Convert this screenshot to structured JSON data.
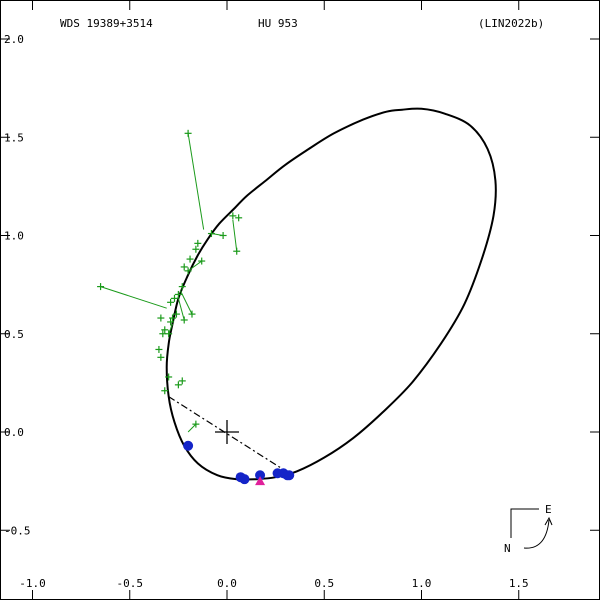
{
  "header": {
    "wds_id": "WDS 19389+3514",
    "discoverer": "HU  953",
    "reference": "(LIN2022b)"
  },
  "compass": {
    "east_label": "E",
    "north_label": "N"
  },
  "chart_data": {
    "type": "scatter",
    "title": "",
    "xlabel": "",
    "ylabel": "",
    "xlim": [
      -1.0,
      1.9
    ],
    "ylim": [
      -0.75,
      2.05
    ],
    "y_reversed": true,
    "grid": false,
    "x_ticks": [
      -1.0,
      -0.5,
      0.0,
      0.5,
      1.0,
      1.5
    ],
    "x_tick_labels": [
      "-1.0",
      "-0.5",
      "0.0",
      "0.5",
      "1.0",
      "1.5"
    ],
    "y_ticks": [
      2.0,
      1.5,
      1.0,
      0.5,
      0.0,
      -0.5
    ],
    "y_tick_labels": [
      "2.0",
      "1.5",
      "1.0",
      "0.5",
      "0.0",
      "-0.5"
    ],
    "primary_star": [
      0.0,
      0.0
    ],
    "orbit": [
      [
        0.9,
        1.64
      ],
      [
        0.82,
        1.63
      ],
      [
        0.7,
        1.59
      ],
      [
        0.55,
        1.52
      ],
      [
        0.42,
        1.44
      ],
      [
        0.3,
        1.36
      ],
      [
        0.2,
        1.28
      ],
      [
        0.1,
        1.2
      ],
      [
        0.04,
        1.14
      ],
      [
        -0.04,
        1.06
      ],
      [
        -0.1,
        0.98
      ],
      [
        -0.15,
        0.9
      ],
      [
        -0.2,
        0.8
      ],
      [
        -0.25,
        0.68
      ],
      [
        -0.28,
        0.55
      ],
      [
        -0.3,
        0.45
      ],
      [
        -0.31,
        0.33
      ],
      [
        -0.3,
        0.18
      ],
      [
        -0.27,
        0.05
      ],
      [
        -0.22,
        -0.07
      ],
      [
        -0.15,
        -0.16
      ],
      [
        -0.05,
        -0.22
      ],
      [
        0.05,
        -0.24
      ],
      [
        0.15,
        -0.24
      ],
      [
        0.25,
        -0.23
      ],
      [
        0.36,
        -0.2
      ],
      [
        0.5,
        -0.13
      ],
      [
        0.65,
        -0.03
      ],
      [
        0.8,
        0.1
      ],
      [
        0.95,
        0.25
      ],
      [
        1.1,
        0.45
      ],
      [
        1.22,
        0.65
      ],
      [
        1.31,
        0.88
      ],
      [
        1.37,
        1.1
      ],
      [
        1.38,
        1.28
      ],
      [
        1.34,
        1.44
      ],
      [
        1.25,
        1.56
      ],
      [
        1.12,
        1.62
      ],
      [
        1.0,
        1.645
      ],
      [
        0.9,
        1.64
      ]
    ],
    "line_of_nodes": [
      [
        -0.3,
        0.18
      ],
      [
        0.32,
        -0.21
      ]
    ],
    "periastron": [
      0.17,
      -0.25
    ],
    "green_points": [
      [
        -0.2,
        1.52
      ],
      [
        -0.08,
        1.01
      ],
      [
        -0.02,
        1.0
      ],
      [
        0.03,
        1.1
      ],
      [
        0.06,
        1.09
      ],
      [
        0.05,
        0.92
      ],
      [
        -0.13,
        0.87
      ],
      [
        -0.15,
        0.96
      ],
      [
        -0.16,
        0.93
      ],
      [
        -0.19,
        0.88
      ],
      [
        -0.2,
        0.82
      ],
      [
        -0.22,
        0.84
      ],
      [
        -0.23,
        0.74
      ],
      [
        -0.25,
        0.7
      ],
      [
        -0.27,
        0.68
      ],
      [
        -0.29,
        0.66
      ],
      [
        -0.26,
        0.6
      ],
      [
        -0.28,
        0.58
      ],
      [
        -0.29,
        0.56
      ],
      [
        -0.32,
        0.52
      ],
      [
        -0.34,
        0.58
      ],
      [
        -0.33,
        0.5
      ],
      [
        -0.35,
        0.42
      ],
      [
        -0.34,
        0.38
      ],
      [
        -0.3,
        0.28
      ],
      [
        -0.25,
        0.24
      ],
      [
        -0.23,
        0.26
      ],
      [
        -0.32,
        0.21
      ],
      [
        -0.65,
        0.74
      ],
      [
        -0.16,
        0.04
      ],
      [
        -0.22,
        0.57
      ],
      [
        -0.18,
        0.6
      ],
      [
        -0.3,
        0.5
      ]
    ],
    "green_residual_lines": [
      [
        [
          -0.2,
          1.52
        ],
        [
          -0.12,
          1.03
        ]
      ],
      [
        [
          0.05,
          0.92
        ],
        [
          0.03,
          1.08
        ]
      ],
      [
        [
          -0.65,
          0.74
        ],
        [
          -0.31,
          0.63
        ]
      ],
      [
        [
          -0.16,
          0.04
        ],
        [
          -0.2,
          0.0
        ]
      ],
      [
        [
          -0.22,
          0.57
        ],
        [
          -0.25,
          0.68
        ]
      ],
      [
        [
          -0.18,
          0.6
        ],
        [
          -0.24,
          0.72
        ]
      ],
      [
        [
          -0.3,
          0.5
        ],
        [
          -0.28,
          0.55
        ]
      ],
      [
        [
          -0.13,
          0.87
        ],
        [
          -0.2,
          0.82
        ]
      ],
      [
        [
          -0.02,
          1.0
        ],
        [
          -0.08,
          1.01
        ]
      ]
    ],
    "blue_points": [
      [
        -0.2,
        -0.07
      ],
      [
        0.07,
        -0.23
      ],
      [
        0.09,
        -0.24
      ],
      [
        0.17,
        -0.22
      ],
      [
        0.26,
        -0.21
      ],
      [
        0.29,
        -0.21
      ],
      [
        0.31,
        -0.22
      ],
      [
        0.32,
        -0.22
      ]
    ]
  }
}
